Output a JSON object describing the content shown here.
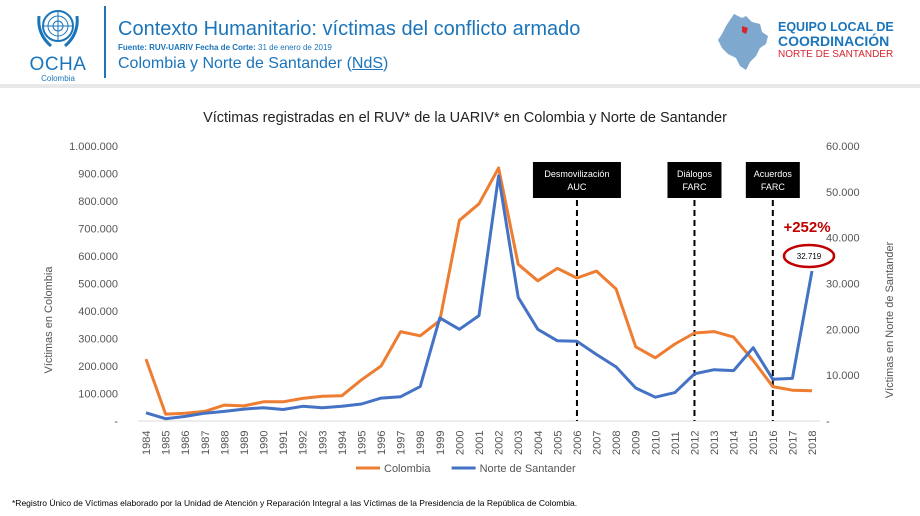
{
  "header": {
    "logo_text": "OCHA",
    "logo_sub": "Colombia",
    "title": "Contexto Humanitario: víctimas del conflicto armado",
    "source_label": "Fuente: RUV-UARIV Fecha de Corte:",
    "source_date": "31 de enero de 2019",
    "subtitle_pre": "Colombia y Norte de Santander (",
    "subtitle_abbr": "NdS",
    "subtitle_post": ")",
    "team_line1": "EQUIPO LOCAL DE",
    "team_line2": "COORDINACIÓN",
    "team_line3": "NORTE DE SANTANDER",
    "colors": {
      "brand_blue": "#1b75bb",
      "brand_red": "#d7262e"
    }
  },
  "chart_data": {
    "type": "line",
    "title": "Víctimas registradas en el RUV* de la UARIV* en Colombia y Norte de Santander",
    "x": [
      "1984",
      "1985",
      "1986",
      "1987",
      "1988",
      "1989",
      "1990",
      "1991",
      "1992",
      "1993",
      "1994",
      "1995",
      "1996",
      "1997",
      "1998",
      "1999",
      "2000",
      "2001",
      "2002",
      "2003",
      "2004",
      "2005",
      "2006",
      "2007",
      "2008",
      "2009",
      "2010",
      "2011",
      "2012",
      "2013",
      "2014",
      "2015",
      "2016",
      "2017",
      "2018"
    ],
    "series": [
      {
        "name": "Colombia",
        "axis": "left",
        "color": "#ed7d31",
        "values": [
          225000,
          25000,
          28000,
          35000,
          58000,
          55000,
          70000,
          70000,
          82000,
          90000,
          92000,
          150000,
          200000,
          325000,
          310000,
          365000,
          730000,
          790000,
          920000,
          570000,
          510000,
          555000,
          520000,
          545000,
          480000,
          270000,
          230000,
          280000,
          320000,
          325000,
          305000,
          220000,
          125000,
          112000,
          110000
        ]
      },
      {
        "name": "Norte de Santander",
        "axis": "right",
        "color": "#4472c4",
        "values": [
          1800,
          500,
          1000,
          1700,
          2100,
          2600,
          2900,
          2500,
          3200,
          2900,
          3200,
          3700,
          5000,
          5300,
          7500,
          22500,
          20000,
          23000,
          53500,
          27000,
          20000,
          17500,
          17400,
          14500,
          11800,
          7200,
          5200,
          6200,
          10300,
          11200,
          11000,
          16000,
          9100,
          9300,
          32719
        ]
      }
    ],
    "ylabel_left": "Víctimas en Colombia",
    "ylabel_right": "Víctimas en Norte de Santander",
    "yticks_left": [
      "-",
      "100.000",
      "200.000",
      "300.000",
      "400.000",
      "500.000",
      "600.000",
      "700.000",
      "800.000",
      "900.000",
      "1.000.000"
    ],
    "yticks_right": [
      "-",
      "10.000",
      "20.000",
      "30.000",
      "40.000",
      "50.000",
      "60.000"
    ],
    "ylim_left": [
      0,
      1000000
    ],
    "ylim_right": [
      0,
      60000
    ],
    "events": [
      {
        "year": "2006",
        "label_lines": [
          "Desmovilización",
          "AUC"
        ]
      },
      {
        "year": "2012",
        "label_lines": [
          "Diálogos",
          "FARC"
        ]
      },
      {
        "year": "2016",
        "label_lines": [
          "Acuerdos",
          "FARC"
        ]
      }
    ],
    "annotation": {
      "pct_label": "+252%",
      "value_label": "32.719",
      "pct_color": "#c00000",
      "circle_color": "#c00000"
    },
    "legend_position": "bottom",
    "grid": false
  },
  "footnote": "*Registro Único de Víctimas elaborado por la Unidad de Atención y Reparación Integral a las Víctimas de la Presidencia de la República de Colombia."
}
